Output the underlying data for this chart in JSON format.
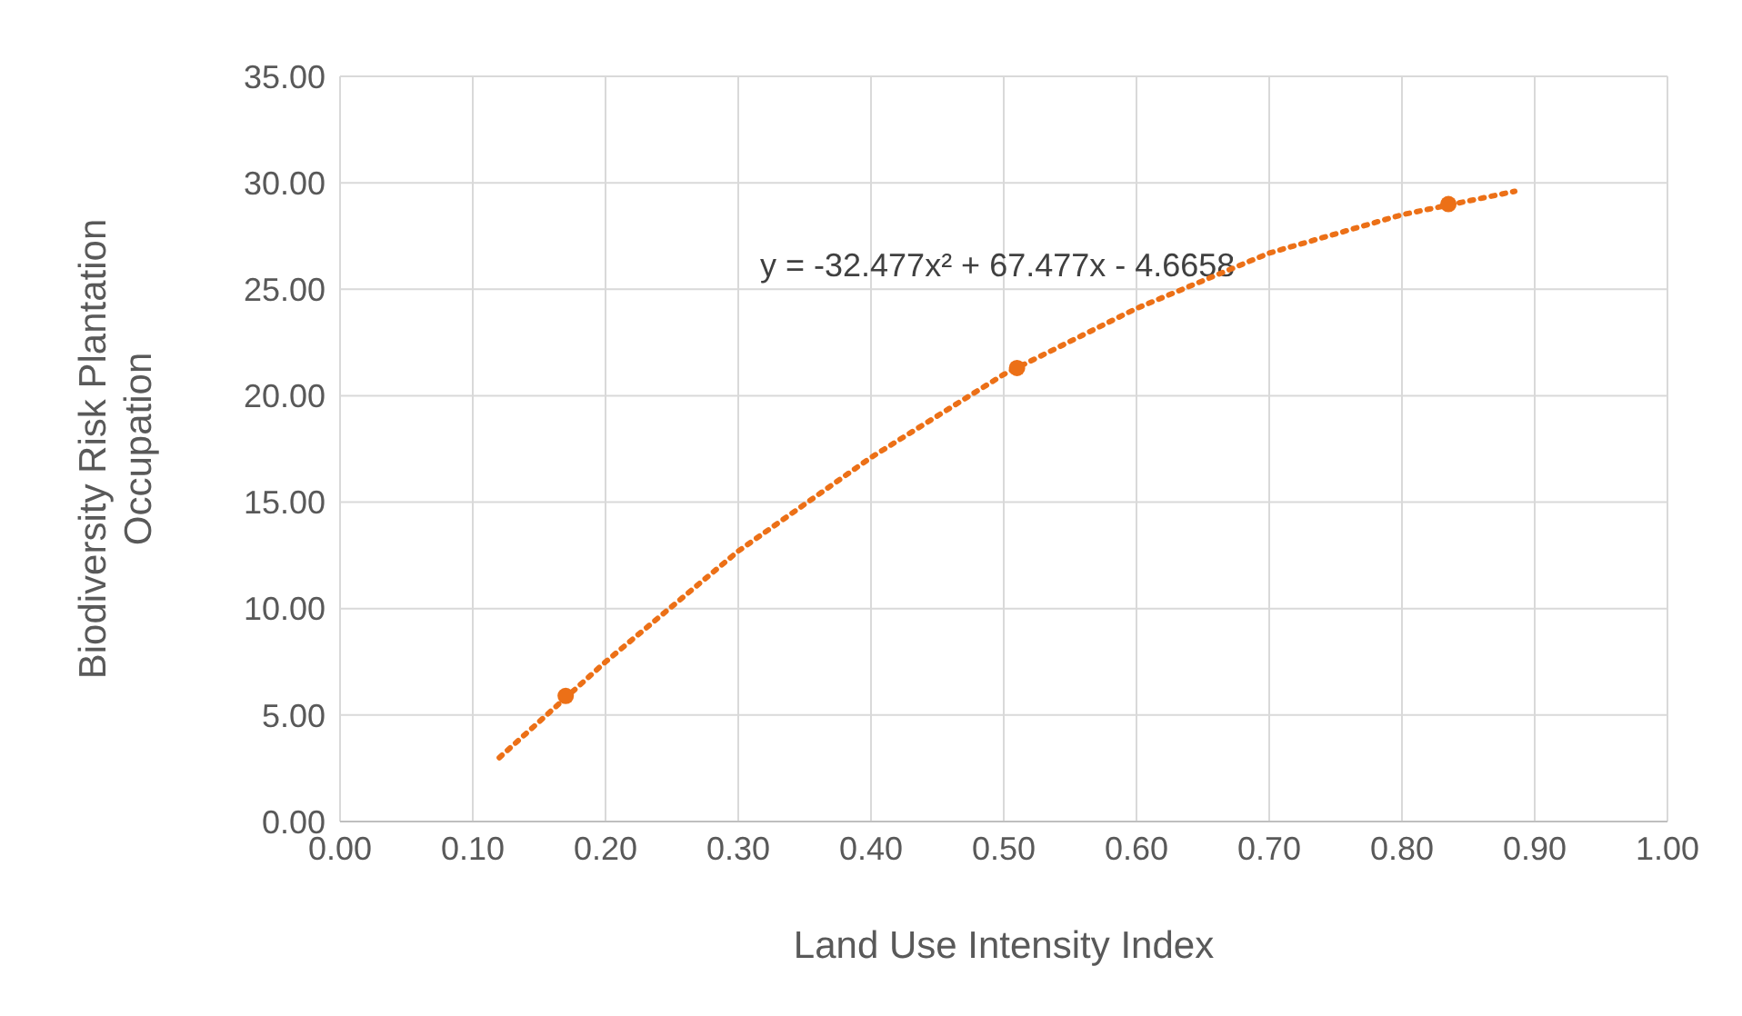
{
  "chart_data": {
    "type": "scatter",
    "xlabel": "Land Use Intensity Index",
    "ylabel": "Biodiversity Risk Plantation Occupation",
    "annotations": [
      "y = -32.477x² + 67.477x - 4.6658"
    ],
    "series": [
      {
        "x": [
          0.17,
          0.51,
          0.835
        ],
        "values": [
          5.9,
          21.3,
          29.0
        ],
        "color": "#ec7017",
        "marker": "circle"
      },
      {
        "type": "line",
        "x": [
          0.12,
          0.2,
          0.3,
          0.4,
          0.5,
          0.6,
          0.7,
          0.8,
          0.885
        ],
        "values": [
          3.0,
          7.5,
          12.7,
          17.1,
          21.0,
          24.1,
          26.7,
          28.5,
          29.6
        ],
        "color": "#ec7017",
        "line_style": "dotted"
      }
    ],
    "xlim": [
      0,
      1
    ],
    "xticks": [
      {
        "value": 0,
        "label": "0.00"
      },
      {
        "value": 0.1,
        "label": "0.10"
      },
      {
        "value": 0.2,
        "label": "0.20"
      },
      {
        "value": 0.3,
        "label": "0.30"
      },
      {
        "value": 0.4,
        "label": "0.40"
      },
      {
        "value": 0.5,
        "label": "0.50"
      },
      {
        "value": 0.6,
        "label": "0.60"
      },
      {
        "value": 0.7,
        "label": "0.70"
      },
      {
        "value": 0.8,
        "label": "0.80"
      },
      {
        "value": 0.9,
        "label": "0.90"
      },
      {
        "value": 1,
        "label": "1.00"
      }
    ],
    "ylim": [
      0,
      35
    ],
    "yticks": [
      {
        "value": 0,
        "label": "0.00"
      },
      {
        "value": 5,
        "label": "5.00"
      },
      {
        "value": 10,
        "label": "10.00"
      },
      {
        "value": 15,
        "label": "15.00"
      },
      {
        "value": 20,
        "label": "20.00"
      },
      {
        "value": 25,
        "label": "25.00"
      },
      {
        "value": 30,
        "label": "30.00"
      },
      {
        "value": 35,
        "label": "35.00"
      }
    ],
    "grid": true
  }
}
